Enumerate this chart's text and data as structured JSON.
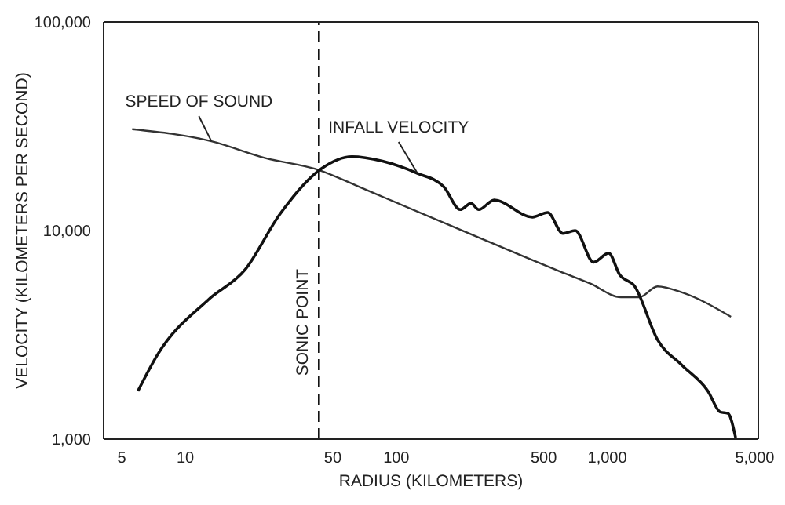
{
  "chart_data": {
    "type": "line",
    "xlabel": "RADIUS (KILOMETERS)",
    "ylabel": "VELOCITY (KILOMETERS PER SECOND)",
    "log": "xy",
    "marker": "none",
    "line_style": "solid",
    "xlim": [
      4.1,
      5200
    ],
    "xticks": [
      5,
      10,
      50,
      100,
      500,
      {
        "value": 1000,
        "label": "1,000"
      },
      {
        "value": 5000,
        "label": "5,000"
      }
    ],
    "ylim": [
      1000,
      100000
    ],
    "yticks": [
      {
        "value": 1000,
        "label": "1,000"
      },
      {
        "value": 10000,
        "label": "10,000"
      },
      {
        "value": 100000,
        "label": "100,000"
      }
    ],
    "ref_lines": [
      {
        "axis": "x",
        "value": 43,
        "label": "SONIC POINT",
        "line_style": "dashed",
        "color": "#111111"
      }
    ],
    "series": [
      {
        "name": "SPEED OF SOUND",
        "color": "#333333",
        "x": [
          5.6,
          13.3,
          23.8,
          43,
          64.9,
          90.6,
          208,
          596,
          832,
          1160,
          1420,
          1730,
          2260,
          3860
        ],
        "values": [
          30600,
          26800,
          22300,
          19500,
          16400,
          14200,
          9950,
          6370,
          5570,
          4790,
          4790,
          5400,
          5050,
          3860
        ]
      },
      {
        "name": "INFALL VELOCITY",
        "color": "#111111",
        "x": [
          5.96,
          7.4,
          12.8,
          19.2,
          28.1,
          44.2,
          61.6,
          86,
          126,
          168,
          201,
          226,
          246,
          291,
          442,
          522,
          616,
          705,
          861,
          1016,
          1143,
          1350,
          1730,
          2260,
          3000,
          3430,
          3730,
          4060
        ],
        "values": [
          1700,
          2550,
          4640,
          6490,
          12000,
          19800,
          22600,
          21500,
          18800,
          16200,
          12600,
          13500,
          12600,
          14000,
          11600,
          12200,
          9680,
          10000,
          7050,
          7790,
          6160,
          5400,
          3000,
          2260,
          1700,
          1350,
          1330,
          1016
        ]
      }
    ]
  }
}
